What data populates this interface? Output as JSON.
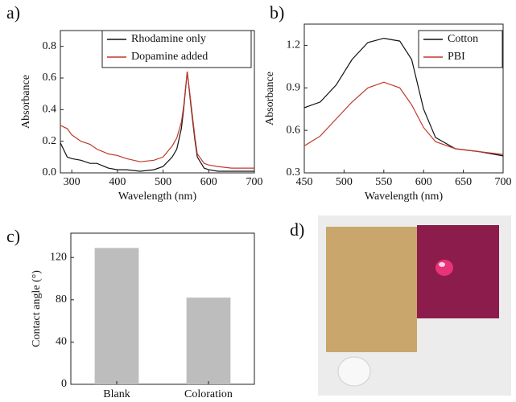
{
  "chart_data": [
    {
      "type": "line",
      "panel_label": "a)",
      "x_label": "Wavelength (nm)",
      "y_label": "Absorbance",
      "x": [
        275,
        290,
        300,
        320,
        340,
        355,
        380,
        400,
        420,
        450,
        480,
        500,
        520,
        530,
        540,
        545,
        553,
        562,
        570,
        575,
        590,
        600,
        620,
        650,
        700
      ],
      "series": [
        {
          "name": "Rhodamine only",
          "color": "#111111",
          "values": [
            0.19,
            0.1,
            0.09,
            0.08,
            0.06,
            0.06,
            0.03,
            0.02,
            0.02,
            0.01,
            0.02,
            0.04,
            0.1,
            0.15,
            0.28,
            0.4,
            0.64,
            0.4,
            0.2,
            0.1,
            0.03,
            0.02,
            0.01,
            0.01,
            0.01
          ]
        },
        {
          "name": "Dopamine added",
          "color": "#c0392b",
          "values": [
            0.3,
            0.28,
            0.24,
            0.2,
            0.18,
            0.15,
            0.12,
            0.11,
            0.09,
            0.07,
            0.08,
            0.1,
            0.17,
            0.22,
            0.32,
            0.42,
            0.64,
            0.42,
            0.22,
            0.12,
            0.06,
            0.05,
            0.04,
            0.03,
            0.03
          ]
        }
      ],
      "xlim": [
        275,
        700
      ],
      "xticks": [
        300,
        400,
        500,
        600,
        700
      ],
      "ylim": [
        0,
        0.9
      ],
      "yticks": [
        {
          "value": 0,
          "label": "0.0"
        },
        0.2,
        0.4,
        0.6,
        0.8
      ]
    },
    {
      "type": "line",
      "panel_label": "b)",
      "x_label": "Wavelength (nm)",
      "y_label": "Absorbance",
      "x": [
        450,
        470,
        490,
        510,
        530,
        550,
        570,
        585,
        600,
        615,
        640,
        670,
        700
      ],
      "series": [
        {
          "name": "Cotton",
          "color": "#111111",
          "values": [
            0.76,
            0.8,
            0.92,
            1.1,
            1.22,
            1.25,
            1.23,
            1.1,
            0.75,
            0.55,
            0.47,
            0.45,
            0.42
          ]
        },
        {
          "name": "PBI",
          "color": "#c0392b",
          "values": [
            0.49,
            0.56,
            0.68,
            0.8,
            0.9,
            0.94,
            0.9,
            0.78,
            0.62,
            0.52,
            0.47,
            0.45,
            0.43
          ]
        }
      ],
      "xlim": [
        450,
        700
      ],
      "xticks": [
        450,
        500,
        550,
        600,
        650,
        700
      ],
      "ylim": [
        0.3,
        1.35
      ],
      "yticks": [
        0.3,
        0.6,
        0.9,
        1.2
      ]
    },
    {
      "type": "bar",
      "panel_label": "c)",
      "y_label": "Contact angle (°)",
      "categories": [
        "Blank",
        "Coloration"
      ],
      "values": [
        129,
        82
      ],
      "color": "#bdbdbd",
      "ylim": [
        0,
        143
      ],
      "yticks": [
        0,
        40,
        80,
        120
      ]
    },
    {
      "type": "photo",
      "panel_label": "d)"
    }
  ]
}
